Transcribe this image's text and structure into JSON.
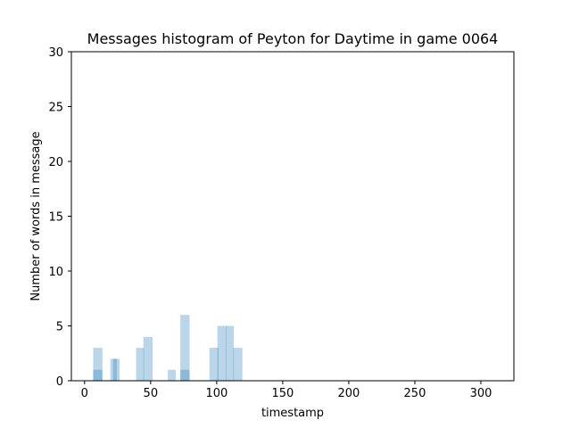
{
  "chart_data": {
    "type": "bar",
    "title": "Messages histogram of Peyton for Daytime in game 0064",
    "xlabel": "timestamp",
    "ylabel": "Number of words in message",
    "xlim": [
      -10,
      325
    ],
    "ylim": [
      0,
      30
    ],
    "xticks": [
      0,
      50,
      100,
      150,
      200,
      250,
      300
    ],
    "yticks": [
      0,
      5,
      10,
      15,
      20,
      25,
      30
    ],
    "bar_color": "#1f77b4",
    "bar_opacity": 0.3,
    "bars": [
      {
        "x": 10,
        "width": 7,
        "value": 3
      },
      {
        "x": 10,
        "width": 7,
        "value": 1
      },
      {
        "x": 22,
        "width": 5,
        "value": 2
      },
      {
        "x": 24,
        "width": 5,
        "value": 2
      },
      {
        "x": 42,
        "width": 6,
        "value": 3
      },
      {
        "x": 48,
        "width": 7,
        "value": 4
      },
      {
        "x": 66,
        "width": 6,
        "value": 1
      },
      {
        "x": 76,
        "width": 7,
        "value": 6
      },
      {
        "x": 76,
        "width": 7,
        "value": 1
      },
      {
        "x": 98,
        "width": 7,
        "value": 3
      },
      {
        "x": 104,
        "width": 7,
        "value": 5
      },
      {
        "x": 110,
        "width": 6,
        "value": 5
      },
      {
        "x": 116,
        "width": 7,
        "value": 3
      }
    ]
  }
}
